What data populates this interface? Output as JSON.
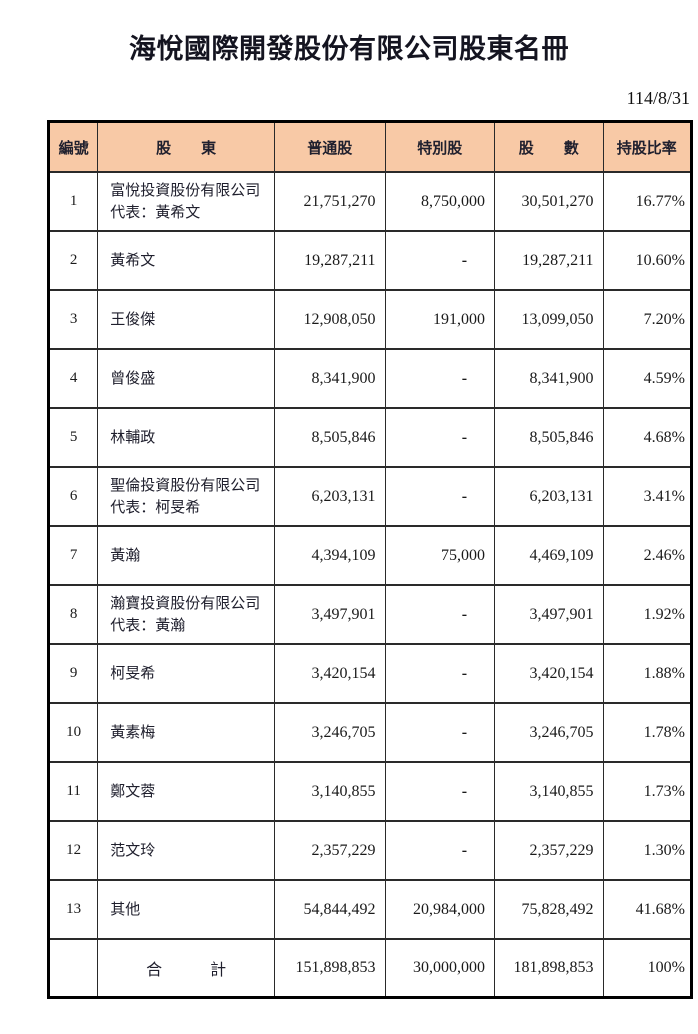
{
  "page": {
    "title": "海悅國際開發股份有限公司股東名冊",
    "date": "114/8/31"
  },
  "colors": {
    "header_bg": "#F8C9A6",
    "border": "#000000"
  },
  "table": {
    "headers": [
      "編號",
      "股　　東",
      "普通股",
      "特別股",
      "股　　數",
      "持股比率"
    ],
    "rows": [
      {
        "no": "1",
        "name": "富悅投資股份有限公司",
        "rep": "代表：黃希文",
        "common": "21,751,270",
        "special": "8,750,000",
        "total": "30,501,270",
        "ratio": "16.77%"
      },
      {
        "no": "2",
        "name": "黃希文",
        "rep": "",
        "common": "19,287,211",
        "special": "-",
        "total": "19,287,211",
        "ratio": "10.60%"
      },
      {
        "no": "3",
        "name": "王俊傑",
        "rep": "",
        "common": "12,908,050",
        "special": "191,000",
        "total": "13,099,050",
        "ratio": "7.20%"
      },
      {
        "no": "4",
        "name": "曾俊盛",
        "rep": "",
        "common": "8,341,900",
        "special": "-",
        "total": "8,341,900",
        "ratio": "4.59%"
      },
      {
        "no": "5",
        "name": "林輔政",
        "rep": "",
        "common": "8,505,846",
        "special": "-",
        "total": "8,505,846",
        "ratio": "4.68%"
      },
      {
        "no": "6",
        "name": "聖倫投資股份有限公司",
        "rep": "代表：柯旻希",
        "common": "6,203,131",
        "special": "-",
        "total": "6,203,131",
        "ratio": "3.41%"
      },
      {
        "no": "7",
        "name": "黃瀚",
        "rep": "",
        "common": "4,394,109",
        "special": "75,000",
        "total": "4,469,109",
        "ratio": "2.46%"
      },
      {
        "no": "8",
        "name": "瀚寶投資股份有限公司",
        "rep": "代表：黃瀚",
        "common": "3,497,901",
        "special": "-",
        "total": "3,497,901",
        "ratio": "1.92%"
      },
      {
        "no": "9",
        "name": "柯旻希",
        "rep": "",
        "common": "3,420,154",
        "special": "-",
        "total": "3,420,154",
        "ratio": "1.88%"
      },
      {
        "no": "10",
        "name": "黃素梅",
        "rep": "",
        "common": "3,246,705",
        "special": "-",
        "total": "3,246,705",
        "ratio": "1.78%"
      },
      {
        "no": "11",
        "name": "鄭文蓉",
        "rep": "",
        "common": "3,140,855",
        "special": "-",
        "total": "3,140,855",
        "ratio": "1.73%"
      },
      {
        "no": "12",
        "name": "范文玲",
        "rep": "",
        "common": "2,357,229",
        "special": "-",
        "total": "2,357,229",
        "ratio": "1.30%"
      },
      {
        "no": "13",
        "name": "其他",
        "rep": "",
        "common": "54,844,492",
        "special": "20,984,000",
        "total": "75,828,492",
        "ratio": "41.68%"
      }
    ],
    "total_row": {
      "no": "",
      "label": "合　　　計",
      "common": "151,898,853",
      "special": "30,000,000",
      "total": "181,898,853",
      "ratio": "100%"
    }
  }
}
